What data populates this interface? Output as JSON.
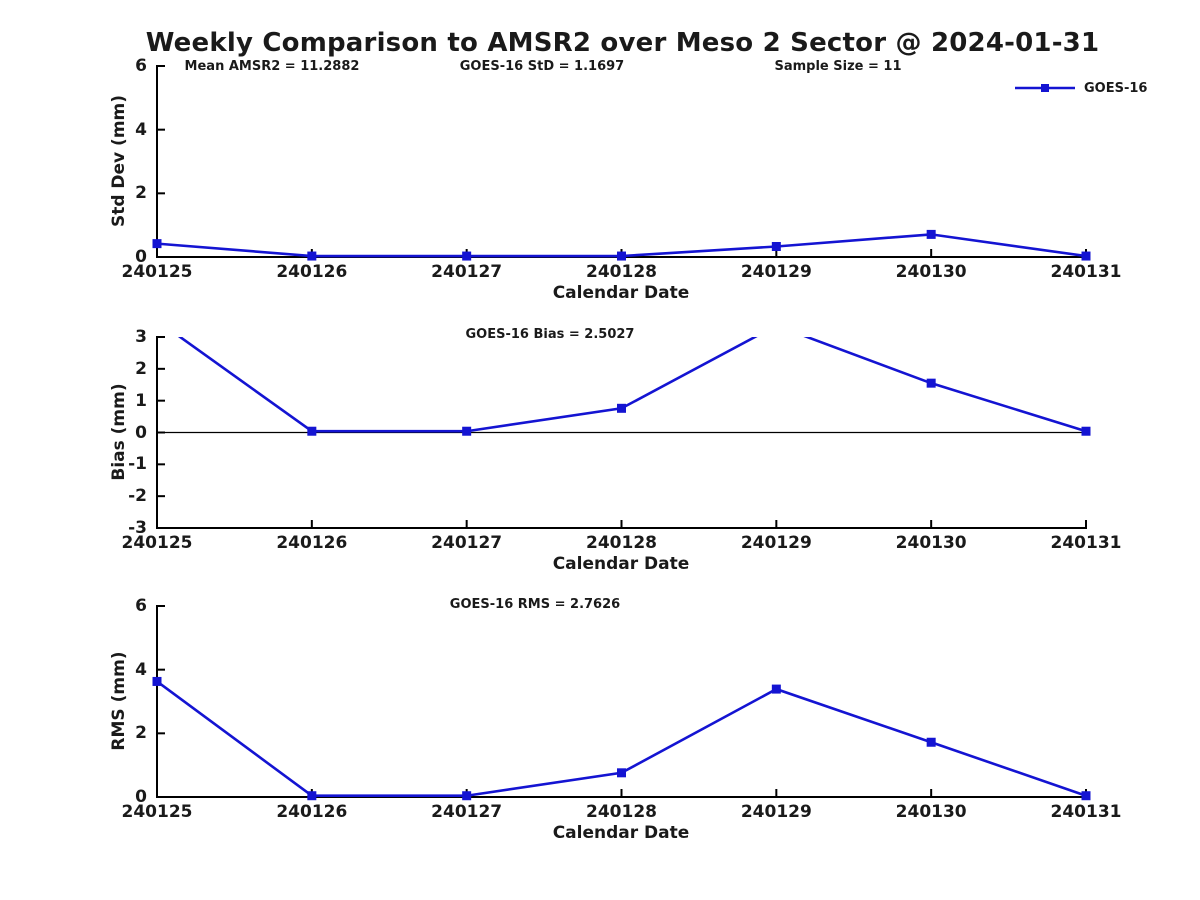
{
  "title": "Weekly Comparison to AMSR2 over Meso 2 Sector @ 2024-01-31",
  "legend": {
    "label": "GOES-16",
    "marker": "filled-square",
    "position": "top-right"
  },
  "colors": {
    "line": "#1414d2",
    "axis": "#000000",
    "zero_line": "#000000",
    "background": "#ffffff",
    "text": "#1a1a1a"
  },
  "chart_data": [
    {
      "type": "line",
      "name": "std-dev-panel",
      "annotations": [
        "Mean AMSR2 = 11.2882",
        "GOES-16 StD = 1.1697",
        "Sample Size = 11"
      ],
      "xlabel": "Calendar Date",
      "ylabel": "Std Dev (mm)",
      "categories": [
        "240125",
        "240126",
        "240127",
        "240128",
        "240129",
        "240130",
        "240131"
      ],
      "series": [
        {
          "name": "GOES-16",
          "values": [
            0.42,
            0.03,
            0.03,
            0.03,
            0.33,
            0.71,
            0.03
          ]
        }
      ],
      "ylim": [
        0,
        6
      ],
      "yticks": [
        0,
        2,
        4,
        6
      ],
      "grid": false,
      "legend_position": "upper-right"
    },
    {
      "type": "line",
      "name": "bias-panel",
      "annotation": "GOES-16 Bias  = 2.5027",
      "xlabel": "Calendar Date",
      "ylabel": "Bias (mm)",
      "categories": [
        "240125",
        "240126",
        "240127",
        "240128",
        "240129",
        "240130",
        "240131"
      ],
      "series": [
        {
          "name": "GOES-16",
          "values": [
            3.52,
            0.04,
            0.04,
            0.76,
            3.36,
            1.55,
            0.04
          ]
        }
      ],
      "ylim": [
        -3,
        3
      ],
      "yticks": [
        3,
        2,
        1,
        0,
        -1,
        -2,
        -3
      ],
      "zero_line": true,
      "clipped_above_ymax": [
        "240125",
        "240129"
      ],
      "grid": false
    },
    {
      "type": "line",
      "name": "rms-panel",
      "annotation": "GOES-16 RMS = 2.7626",
      "xlabel": "Calendar Date",
      "ylabel": "RMS (mm)",
      "categories": [
        "240125",
        "240126",
        "240127",
        "240128",
        "240129",
        "240130",
        "240131"
      ],
      "series": [
        {
          "name": "GOES-16",
          "values": [
            3.63,
            0.04,
            0.04,
            0.76,
            3.39,
            1.72,
            0.04
          ]
        }
      ],
      "ylim": [
        0,
        6
      ],
      "yticks": [
        0,
        2,
        4,
        6
      ],
      "grid": false
    }
  ]
}
